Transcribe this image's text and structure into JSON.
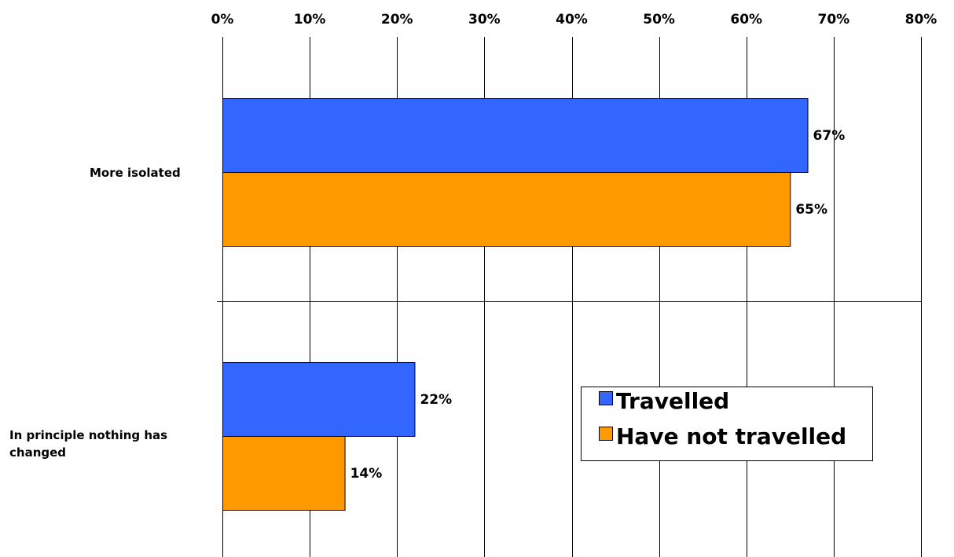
{
  "chart_data": {
    "type": "bar",
    "orientation": "horizontal",
    "title": "",
    "xlabel": "",
    "ylabel": "",
    "categories": [
      "More isolated",
      "In principle nothing has changed"
    ],
    "series": [
      {
        "name": "Travelled",
        "color": "#3366ff",
        "values": [
          67,
          22
        ],
        "labels": [
          "67%",
          "22%"
        ]
      },
      {
        "name": "Have not travelled",
        "color": "#ff9900",
        "values": [
          65,
          14
        ],
        "labels": [
          "65%",
          "14%"
        ]
      }
    ],
    "xlim": [
      0,
      80
    ],
    "xticks": [
      "0%",
      "10%",
      "20%",
      "30%",
      "40%",
      "50%",
      "60%",
      "70%",
      "80%"
    ],
    "axis_position": "top",
    "grid": true,
    "legend_position": "bottom-right"
  }
}
